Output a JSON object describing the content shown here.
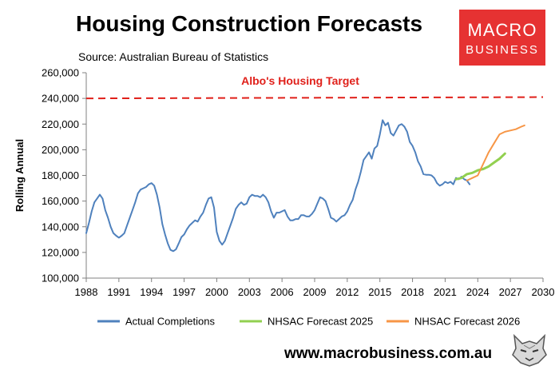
{
  "header": {
    "title": "Housing Construction Forecasts",
    "subtitle": "Source: Australian Bureau of Statistics"
  },
  "logo": {
    "line1": "MACRO",
    "line2": "BUSINESS",
    "color": "#e63232"
  },
  "footer": {
    "url": "www.macrobusiness.com.au",
    "mascot_icon": "wolf-icon"
  },
  "chart_data": {
    "type": "line",
    "title": "",
    "ylabel": "Rolling Annual",
    "xlabel": "",
    "xlim": [
      1988,
      2030
    ],
    "ylim": [
      100000,
      260000
    ],
    "x_ticks": [
      "1988",
      "1991",
      "1994",
      "1997",
      "2000",
      "2003",
      "2006",
      "2009",
      "2012",
      "2015",
      "2018",
      "2021",
      "2024",
      "2027",
      "2030"
    ],
    "y_ticks": [
      "100,000",
      "120,000",
      "140,000",
      "160,000",
      "180,000",
      "200,000",
      "220,000",
      "240,000",
      "260,000"
    ],
    "grid": false,
    "legend": "bottom",
    "target": {
      "label": "Albo's Housing Target",
      "y_start": 240000,
      "y_end": 241000,
      "color": "#e0201a"
    },
    "series": [
      {
        "name": "Actual Completions",
        "color": "#4f81bd",
        "points": [
          [
            1988.0,
            135000
          ],
          [
            1988.25,
            143000
          ],
          [
            1988.5,
            152000
          ],
          [
            1988.75,
            159000
          ],
          [
            1989.0,
            162000
          ],
          [
            1989.25,
            165000
          ],
          [
            1989.5,
            162000
          ],
          [
            1989.75,
            153000
          ],
          [
            1990.0,
            147000
          ],
          [
            1990.25,
            140000
          ],
          [
            1990.5,
            135000
          ],
          [
            1990.75,
            133000
          ],
          [
            1991.0,
            131500
          ],
          [
            1991.25,
            133000
          ],
          [
            1991.5,
            135000
          ],
          [
            1991.75,
            141000
          ],
          [
            1992.0,
            147000
          ],
          [
            1992.25,
            153000
          ],
          [
            1992.5,
            159000
          ],
          [
            1992.75,
            166000
          ],
          [
            1993.0,
            169000
          ],
          [
            1993.25,
            170000
          ],
          [
            1993.5,
            171000
          ],
          [
            1993.75,
            173000
          ],
          [
            1994.0,
            174000
          ],
          [
            1994.25,
            172000
          ],
          [
            1994.5,
            165000
          ],
          [
            1994.75,
            155000
          ],
          [
            1995.0,
            142000
          ],
          [
            1995.25,
            134000
          ],
          [
            1995.5,
            127000
          ],
          [
            1995.75,
            122000
          ],
          [
            1996.0,
            121000
          ],
          [
            1996.25,
            122500
          ],
          [
            1996.5,
            127000
          ],
          [
            1996.75,
            132000
          ],
          [
            1997.0,
            134000
          ],
          [
            1997.25,
            138000
          ],
          [
            1997.5,
            141000
          ],
          [
            1997.75,
            143000
          ],
          [
            1998.0,
            145000
          ],
          [
            1998.25,
            144000
          ],
          [
            1998.5,
            148000
          ],
          [
            1998.75,
            151000
          ],
          [
            1999.0,
            157000
          ],
          [
            1999.25,
            162000
          ],
          [
            1999.5,
            163000
          ],
          [
            1999.75,
            155000
          ],
          [
            2000.0,
            136000
          ],
          [
            2000.25,
            129000
          ],
          [
            2000.5,
            126000
          ],
          [
            2000.75,
            129000
          ],
          [
            2001.0,
            135000
          ],
          [
            2001.25,
            141000
          ],
          [
            2001.5,
            147000
          ],
          [
            2001.75,
            154000
          ],
          [
            2002.0,
            157000
          ],
          [
            2002.25,
            159000
          ],
          [
            2002.5,
            157000
          ],
          [
            2002.75,
            158000
          ],
          [
            2003.0,
            163000
          ],
          [
            2003.25,
            165000
          ],
          [
            2003.5,
            164000
          ],
          [
            2003.75,
            164000
          ],
          [
            2004.0,
            163000
          ],
          [
            2004.25,
            165000
          ],
          [
            2004.5,
            163000
          ],
          [
            2004.75,
            159000
          ],
          [
            2005.0,
            152000
          ],
          [
            2005.25,
            147000
          ],
          [
            2005.5,
            151000
          ],
          [
            2005.75,
            151000
          ],
          [
            2006.0,
            152000
          ],
          [
            2006.25,
            153000
          ],
          [
            2006.5,
            148000
          ],
          [
            2006.75,
            145000
          ],
          [
            2007.0,
            145000
          ],
          [
            2007.25,
            146000
          ],
          [
            2007.5,
            146000
          ],
          [
            2007.75,
            149000
          ],
          [
            2008.0,
            149000
          ],
          [
            2008.25,
            148000
          ],
          [
            2008.5,
            148000
          ],
          [
            2008.75,
            150000
          ],
          [
            2009.0,
            153000
          ],
          [
            2009.25,
            158000
          ],
          [
            2009.5,
            163000
          ],
          [
            2009.75,
            162000
          ],
          [
            2010.0,
            160000
          ],
          [
            2010.25,
            154000
          ],
          [
            2010.5,
            147000
          ],
          [
            2010.75,
            146000
          ],
          [
            2011.0,
            144000
          ],
          [
            2011.25,
            146000
          ],
          [
            2011.5,
            148000
          ],
          [
            2011.75,
            149000
          ],
          [
            2012.0,
            152000
          ],
          [
            2012.25,
            157000
          ],
          [
            2012.5,
            161000
          ],
          [
            2012.75,
            169000
          ],
          [
            2013.0,
            175000
          ],
          [
            2013.25,
            183000
          ],
          [
            2013.5,
            192000
          ],
          [
            2013.75,
            195000
          ],
          [
            2014.0,
            198000
          ],
          [
            2014.25,
            193000
          ],
          [
            2014.5,
            201000
          ],
          [
            2014.75,
            203000
          ],
          [
            2015.0,
            212000
          ],
          [
            2015.25,
            223000
          ],
          [
            2015.5,
            219000
          ],
          [
            2015.75,
            221000
          ],
          [
            2016.0,
            213000
          ],
          [
            2016.25,
            211000
          ],
          [
            2016.5,
            215000
          ],
          [
            2016.75,
            219000
          ],
          [
            2017.0,
            220000
          ],
          [
            2017.25,
            218000
          ],
          [
            2017.5,
            214000
          ],
          [
            2017.75,
            206000
          ],
          [
            2018.0,
            203000
          ],
          [
            2018.25,
            198000
          ],
          [
            2018.5,
            191000
          ],
          [
            2018.75,
            187000
          ],
          [
            2019.0,
            181000
          ],
          [
            2019.25,
            180500
          ],
          [
            2019.5,
            180500
          ],
          [
            2019.75,
            180000
          ],
          [
            2020.0,
            178000
          ],
          [
            2020.25,
            174000
          ],
          [
            2020.5,
            172000
          ],
          [
            2020.75,
            173000
          ],
          [
            2021.0,
            175000
          ],
          [
            2021.25,
            174000
          ],
          [
            2021.5,
            175000
          ],
          [
            2021.75,
            173000
          ],
          [
            2022.0,
            178000
          ],
          [
            2022.25,
            177000
          ],
          [
            2022.5,
            179000
          ],
          [
            2022.75,
            177000
          ],
          [
            2023.0,
            176000
          ],
          [
            2023.25,
            173000
          ]
        ]
      },
      {
        "name": "NHSAC Forecast 2025",
        "color": "#92d050",
        "points": [
          [
            2022.0,
            177000
          ],
          [
            2022.5,
            178000
          ],
          [
            2023.0,
            181000
          ],
          [
            2023.5,
            182000
          ],
          [
            2024.0,
            184000
          ],
          [
            2024.5,
            185000
          ],
          [
            2025.0,
            187000
          ],
          [
            2025.5,
            190000
          ],
          [
            2026.0,
            193000
          ],
          [
            2026.5,
            197000
          ]
        ]
      },
      {
        "name": "NHSAC Forecast 2026",
        "color": "#f79646",
        "points": [
          [
            2023.0,
            176000
          ],
          [
            2023.5,
            178000
          ],
          [
            2024.0,
            180000
          ],
          [
            2024.5,
            189000
          ],
          [
            2025.0,
            198000
          ],
          [
            2025.5,
            205000
          ],
          [
            2026.0,
            212000
          ],
          [
            2026.5,
            214000
          ],
          [
            2027.0,
            215000
          ],
          [
            2027.5,
            216000
          ],
          [
            2028.0,
            218000
          ],
          [
            2028.3,
            219000
          ]
        ]
      }
    ]
  }
}
